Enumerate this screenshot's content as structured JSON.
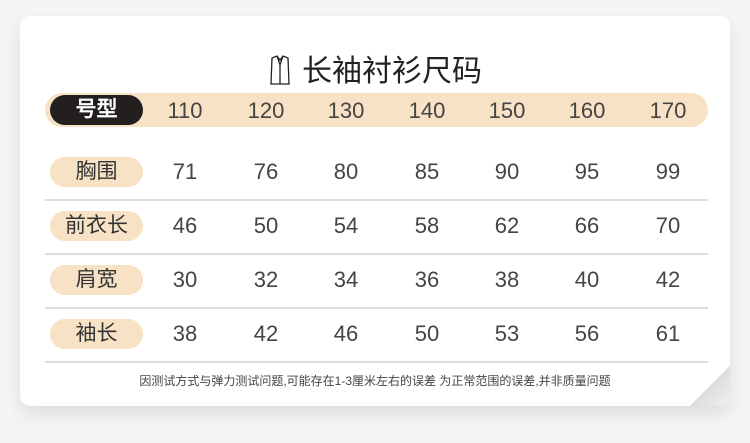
{
  "title": "长袖衬衫尺码",
  "title_icon": "shirt-icon",
  "colors": {
    "accent": "#f8e2c6",
    "header_label": "#231f1f"
  },
  "table": {
    "header": {
      "label": "号型",
      "values": [
        "110",
        "120",
        "130",
        "140",
        "150",
        "160",
        "170"
      ]
    },
    "rows": [
      {
        "label": "胸围",
        "values": [
          "71",
          "76",
          "80",
          "85",
          "90",
          "95",
          "99"
        ]
      },
      {
        "label": "前衣长",
        "values": [
          "46",
          "50",
          "54",
          "58",
          "62",
          "66",
          "70"
        ]
      },
      {
        "label": "肩宽",
        "values": [
          "30",
          "32",
          "34",
          "36",
          "38",
          "40",
          "42"
        ]
      },
      {
        "label": "袖长",
        "values": [
          "38",
          "42",
          "46",
          "50",
          "53",
          "56",
          "61"
        ]
      }
    ]
  },
  "note": "因测试方式与弹力测试问题,可能存在1-3厘米左右的误差 为正常范围的误差,并非质量问题"
}
